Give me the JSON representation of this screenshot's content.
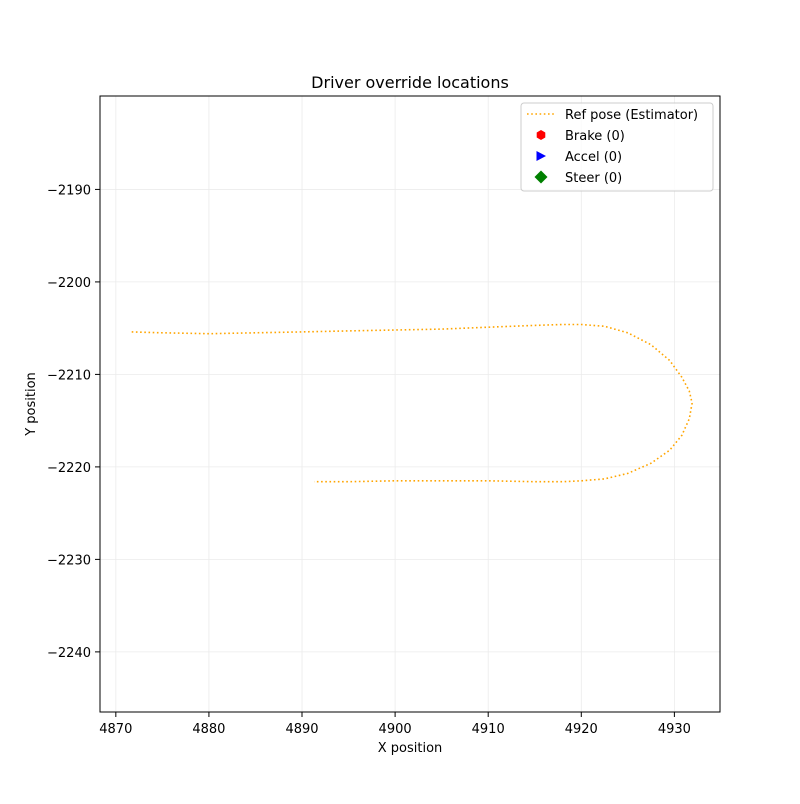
{
  "chart_data": {
    "type": "line",
    "title": "Driver override locations",
    "xlabel": "X position",
    "ylabel": "Y position",
    "xlim": [
      4868.3,
      4934.9
    ],
    "ylim": [
      -2246.5,
      -2179.9
    ],
    "xticks": [
      4870,
      4880,
      4890,
      4900,
      4910,
      4920,
      4930
    ],
    "yticks": [
      -2190,
      -2200,
      -2210,
      -2220,
      -2230,
      -2240
    ],
    "xtick_labels": [
      "4870",
      "4880",
      "4890",
      "4900",
      "4910",
      "4920",
      "4930"
    ],
    "ytick_labels": [
      "−2190",
      "−2200",
      "−2210",
      "−2220",
      "−2230",
      "−2240"
    ],
    "grid": true,
    "legend_position": "top-right",
    "series": [
      {
        "name": "Ref pose (Estimator)",
        "style": "dotted-line",
        "color": "#ffa500",
        "x": [
          4871.7,
          4875,
          4880,
          4885,
          4890,
          4895,
          4900,
          4905,
          4910,
          4915,
          4918,
          4920,
          4922.5,
          4925,
          4927.5,
          4929.5,
          4930.8,
          4931.6,
          4931.9,
          4931.6,
          4930.8,
          4929.5,
          4927.5,
          4925,
          4922.5,
          4920,
          4918,
          4915,
          4910,
          4905,
          4900,
          4895,
          4891.3
        ],
        "y": [
          -2205.4,
          -2205.5,
          -2205.6,
          -2205.5,
          -2205.4,
          -2205.3,
          -2205.2,
          -2205.1,
          -2204.9,
          -2204.7,
          -2204.6,
          -2204.6,
          -2204.8,
          -2205.5,
          -2206.8,
          -2208.5,
          -2210.3,
          -2211.8,
          -2213.1,
          -2214.8,
          -2216.6,
          -2218.2,
          -2219.6,
          -2220.7,
          -2221.3,
          -2221.5,
          -2221.6,
          -2221.6,
          -2221.5,
          -2221.5,
          -2221.5,
          -2221.6,
          -2221.6
        ]
      },
      {
        "name": "Brake (0)",
        "style": "marker-hexagon",
        "color": "#ff0000",
        "x": [],
        "y": []
      },
      {
        "name": "Accel (0)",
        "style": "marker-triangle-right",
        "color": "#0000ff",
        "x": [],
        "y": []
      },
      {
        "name": "Steer (0)",
        "style": "marker-diamond",
        "color": "#008000",
        "x": [],
        "y": []
      }
    ]
  }
}
